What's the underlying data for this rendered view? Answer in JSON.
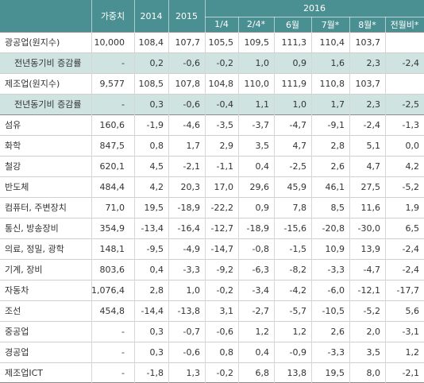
{
  "colors": {
    "header_bg": "#4a8f91",
    "header_text": "#ffffff",
    "sub_bg": "#cfe3e1",
    "text": "#333333"
  },
  "header": {
    "year_2016": "2016",
    "col_weight": "가중치",
    "col_2014": "2014",
    "col_2015": "2015",
    "col_q1": "1/4",
    "col_q2": "2/4*",
    "col_jun": "6월",
    "col_jul": "7월*",
    "col_aug": "8월*",
    "col_mom": "전월비*"
  },
  "rows": [
    {
      "label": "광공업(원지수)",
      "sub": false,
      "values": [
        "10,000",
        "108,4",
        "107,7",
        "105,5",
        "109,5",
        "111,3",
        "110,4",
        "103,7",
        ""
      ]
    },
    {
      "label": "전년동기비 증감률",
      "sub": true,
      "values": [
        "-",
        "0,2",
        "-0,6",
        "-0,2",
        "1,0",
        "0,9",
        "1,6",
        "2,3",
        "-2,4"
      ]
    },
    {
      "label": "제조업(원지수)",
      "sub": false,
      "values": [
        "9,577",
        "108,5",
        "107,8",
        "104,8",
        "110,0",
        "111,9",
        "110,8",
        "103,7",
        ""
      ]
    },
    {
      "label": "전년동기비 증감률",
      "sub": true,
      "values": [
        "-",
        "0,3",
        "-0,6",
        "-0,4",
        "1,1",
        "1,0",
        "1,7",
        "2,3",
        "-2,5"
      ]
    },
    {
      "label": "섬유",
      "sub": false,
      "values": [
        "160,6",
        "-1,9",
        "-4,6",
        "-3,5",
        "-3,7",
        "-4,7",
        "-9,1",
        "-2,4",
        "-1,3"
      ]
    },
    {
      "label": "화학",
      "sub": false,
      "values": [
        "847,5",
        "0,8",
        "1,7",
        "2,9",
        "3,5",
        "4,7",
        "2,8",
        "5,1",
        "0,0"
      ]
    },
    {
      "label": "철강",
      "sub": false,
      "values": [
        "620,1",
        "4,5",
        "-2,1",
        "-1,1",
        "0,4",
        "-2,5",
        "2,6",
        "4,7",
        "4,2"
      ]
    },
    {
      "label": "반도체",
      "sub": false,
      "values": [
        "484,4",
        "4,2",
        "20,3",
        "17,0",
        "29,6",
        "45,9",
        "46,1",
        "27,5",
        "-5,2"
      ]
    },
    {
      "label": "컴퓨터, 주변장치",
      "sub": false,
      "values": [
        "71,0",
        "19,5",
        "-18,9",
        "-22,2",
        "0,9",
        "7,8",
        "8,5",
        "11,6",
        "1,9"
      ]
    },
    {
      "label": "통신, 방송장비",
      "sub": false,
      "values": [
        "354,9",
        "-13,4",
        "-16,4",
        "-12,7",
        "-18,9",
        "-15,6",
        "-20,8",
        "-30,0",
        "6,5"
      ]
    },
    {
      "label": "의료, 정밀, 광학",
      "sub": false,
      "values": [
        "148,1",
        "-9,5",
        "-4,9",
        "-14,7",
        "-0,8",
        "-1,5",
        "10,9",
        "13,9",
        "-2,4"
      ]
    },
    {
      "label": "기계, 장비",
      "sub": false,
      "values": [
        "803,6",
        "0,4",
        "-3,3",
        "-9,2",
        "-6,3",
        "-8,2",
        "-3,3",
        "-4,7",
        "-2,4"
      ]
    },
    {
      "label": "자동차",
      "sub": false,
      "values": [
        "1,076,4",
        "2,8",
        "1,0",
        "-0,2",
        "-3,4",
        "-4,2",
        "-6,0",
        "-12,1",
        "-17,7"
      ]
    },
    {
      "label": "조선",
      "sub": false,
      "values": [
        "454,8",
        "-14,4",
        "-13,8",
        "3,1",
        "-2,7",
        "-5,7",
        "-10,5",
        "-5,2",
        "5,6"
      ]
    },
    {
      "label": "중공업",
      "sub": false,
      "values": [
        "-",
        "0,3",
        "-0,7",
        "-0,6",
        "1,2",
        "1,2",
        "2,6",
        "2,0",
        "-3,1"
      ]
    },
    {
      "label": "경공업",
      "sub": false,
      "values": [
        "-",
        "0,3",
        "-0,6",
        "0,8",
        "0,4",
        "-0,9",
        "-3,3",
        "3,5",
        "1,2"
      ]
    },
    {
      "label": "제조업ICT",
      "sub": false,
      "values": [
        "-",
        "-1,8",
        "1,3",
        "-0,2",
        "6,8",
        "13,8",
        "19,5",
        "8,0",
        "-2,1"
      ]
    }
  ]
}
